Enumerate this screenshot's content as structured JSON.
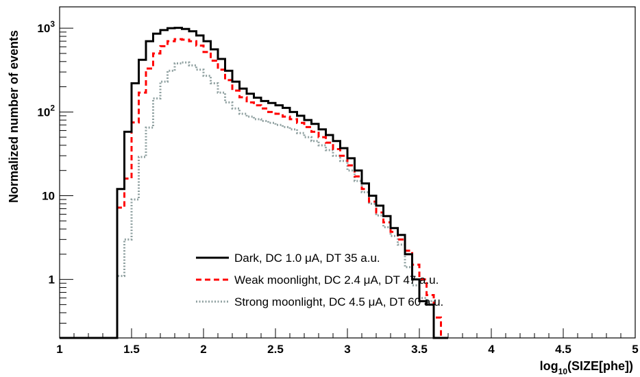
{
  "chart_data": {
    "type": "line",
    "title": "",
    "xlabel": "log10(SIZE[phe])",
    "xlabel_parts": {
      "base": "log",
      "sub": "10",
      "rest": "(SIZE[phe])"
    },
    "ylabel": "Normalized number of events",
    "xlim": [
      1.0,
      5.0
    ],
    "ylim": [
      0.2,
      1800
    ],
    "yscale": "log",
    "grid": false,
    "legend_position": "bottom-center",
    "x_ticks": [
      "1",
      "1.5",
      "2",
      "2.5",
      "3",
      "3.5",
      "4",
      "4.5",
      "5"
    ],
    "x_tick_values": [
      1,
      1.5,
      2,
      2.5,
      3,
      3.5,
      4,
      4.5,
      5
    ],
    "y_ticks": [
      {
        "value": 1,
        "label": "1",
        "sup": ""
      },
      {
        "value": 10,
        "label": "10",
        "sup": ""
      },
      {
        "value": 100,
        "label": "10",
        "sup": "2"
      },
      {
        "value": 1000,
        "label": "10",
        "sup": "3"
      }
    ],
    "bin_width": 0.05,
    "bin_start": 1.0,
    "series": [
      {
        "name": "Dark, DC 1.0 μA, DT 35 a.u.",
        "color": "#000000",
        "dash": "solid",
        "values": [
          0.2,
          0.2,
          0.2,
          0.2,
          0.2,
          0.2,
          0.2,
          0.2,
          12,
          58,
          220,
          420,
          700,
          860,
          950,
          1000,
          1010,
          980,
          920,
          820,
          700,
          560,
          430,
          310,
          230,
          190,
          165,
          148,
          135,
          128,
          120,
          112,
          100,
          90,
          80,
          72,
          62,
          53,
          45,
          37,
          28,
          20,
          14,
          10,
          7.6,
          5.7,
          4.1,
          3.4,
          2.0,
          1.0,
          0.55,
          0.5,
          0.2,
          0.2
        ]
      },
      {
        "name": "Weak moonlight, DC 2.4 μA, DT 47 a.u.",
        "color": "#ff0000",
        "dash": "dashed",
        "values": [
          0.2,
          0.2,
          0.2,
          0.2,
          0.2,
          0.2,
          0.2,
          0.2,
          7.2,
          16,
          75,
          170,
          330,
          500,
          610,
          700,
          740,
          730,
          700,
          620,
          520,
          410,
          320,
          240,
          180,
          150,
          130,
          120,
          110,
          100,
          95,
          88,
          82,
          74,
          66,
          58,
          50,
          43,
          36,
          30,
          23,
          17,
          12,
          8.5,
          6.3,
          4.8,
          3.7,
          3.0,
          2.2,
          1.5,
          1.0,
          0.65,
          0.35,
          0.2
        ]
      },
      {
        "name": "Strong moonlight, DC 4.5 μA, DT 60 a.u.",
        "color": "#8fa0a0",
        "dash": "dotted",
        "values": [
          0.2,
          0.2,
          0.2,
          0.2,
          0.2,
          0.2,
          0.2,
          0.2,
          1.1,
          3.0,
          9.0,
          29,
          65,
          145,
          230,
          310,
          380,
          390,
          360,
          320,
          270,
          220,
          170,
          130,
          110,
          95,
          88,
          82,
          78,
          74,
          70,
          66,
          62,
          56,
          50,
          45,
          40,
          35,
          30,
          26,
          20,
          15,
          11,
          8.0,
          5.8,
          4.2,
          3.3,
          2.6,
          1.4,
          0.85,
          0.6,
          0.55,
          0.2,
          0.2
        ]
      }
    ]
  }
}
